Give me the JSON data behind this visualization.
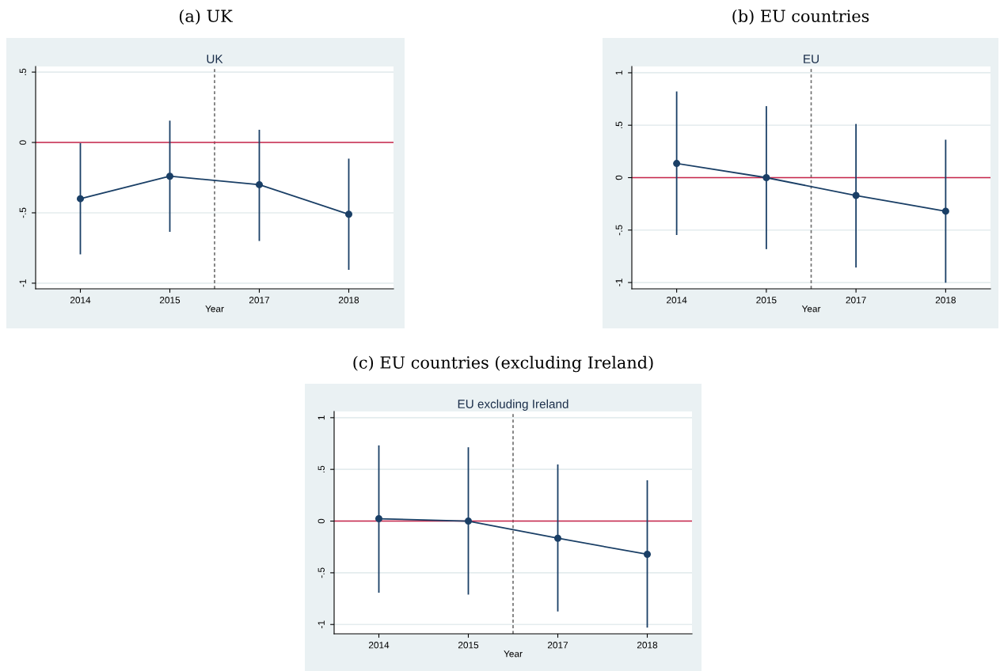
{
  "chart_data": [
    {
      "type": "line",
      "title": "(a) UK",
      "subtitle": "UK",
      "xlabel": "Year",
      "categories": [
        "2014",
        "2015",
        "2017",
        "2018"
      ],
      "series": [
        {
          "color": "#1a3f66",
          "values": [
            -0.4,
            -0.24,
            -0.3,
            -0.51
          ],
          "errors": [
            [
              -0.79,
              -0.01
            ],
            [
              -0.63,
              0.15
            ],
            [
              -0.695,
              0.085
            ],
            [
              -0.9,
              -0.12
            ]
          ]
        }
      ],
      "ylim": [
        -1.04,
        0.54
      ],
      "yticks": [
        {
          "value": -1,
          "label": "-1"
        },
        {
          "value": -0.5,
          "label": "-.5"
        },
        0,
        {
          "value": 0.5,
          "label": ".5"
        }
      ],
      "grid": "y",
      "marker": "circle",
      "line_style": "solid",
      "ref_lines": [
        {
          "axis": "y",
          "value": 0,
          "color": "#c8254a",
          "line_style": "solid"
        }
      ]
    },
    {
      "type": "line",
      "title": "(b) EU countries",
      "subtitle": "EU",
      "xlabel": "Year",
      "categories": [
        "2014",
        "2015",
        "2017",
        "2018"
      ],
      "series": [
        {
          "color": "#1a3f66",
          "values": [
            0.135,
            0,
            -0.17,
            -0.32
          ],
          "errors": [
            [
              -0.54,
              0.815
            ],
            [
              -0.675,
              0.675
            ],
            [
              -0.85,
              0.505
            ],
            [
              -0.995,
              0.355
            ]
          ]
        }
      ],
      "ylim": [
        -1.06,
        1.06
      ],
      "yticks": [
        {
          "value": -1,
          "label": "-1"
        },
        {
          "value": -0.5,
          "label": "-.5"
        },
        0,
        {
          "value": 0.5,
          "label": ".5"
        },
        1
      ],
      "grid": "y",
      "marker": "circle",
      "line_style": "solid",
      "ref_lines": [
        {
          "axis": "y",
          "value": 0,
          "color": "#c8254a",
          "line_style": "solid"
        }
      ]
    },
    {
      "type": "line",
      "title": "(c) EU countries (excluding Ireland)",
      "subtitle": "EU excluding Ireland",
      "xlabel": "Year",
      "categories": [
        "2014",
        "2015",
        "2017",
        "2018"
      ],
      "series": [
        {
          "color": "#1a3f66",
          "values": [
            0.023,
            0,
            -0.166,
            -0.321
          ],
          "errors": [
            [
              -0.686,
              0.725
            ],
            [
              -0.704,
              0.707
            ],
            [
              -0.867,
              0.541
            ],
            [
              -1.023,
              0.388
            ]
          ]
        }
      ],
      "ylim": [
        -1.09,
        1.06
      ],
      "yticks": [
        {
          "value": -1,
          "label": "-1"
        },
        {
          "value": -0.5,
          "label": "-.5"
        },
        0,
        {
          "value": 0.5,
          "label": ".5"
        },
        1
      ],
      "grid": "y",
      "marker": "circle",
      "line_style": "solid",
      "ref_lines": [
        {
          "axis": "y",
          "value": 0,
          "color": "#c8254a",
          "line_style": "solid"
        }
      ]
    }
  ]
}
